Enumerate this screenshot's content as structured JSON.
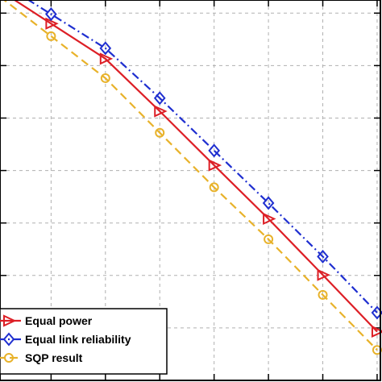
{
  "chart_data": {
    "type": "line",
    "title": "",
    "xlabel": "",
    "ylabel": "",
    "grid": true,
    "legend_location": "bottom-left",
    "x": [
      1,
      2,
      3,
      4,
      5,
      6,
      7
    ],
    "xlim": [
      0.06,
      7.06
    ],
    "ylim": [
      0,
      7.25
    ],
    "series": [
      {
        "name": "Equal power",
        "color": "#dd1f26",
        "line_style": "solid",
        "marker": "triangle-right",
        "values": [
          6.8,
          6.13,
          5.13,
          4.1,
          3.08,
          2.01,
          0.93
        ]
      },
      {
        "name": "Equal link reliability",
        "color": "#1f2fd0",
        "line_style": "dashdot",
        "marker": "diamond",
        "values": [
          6.98,
          6.33,
          5.38,
          4.38,
          3.38,
          2.36,
          1.29
        ]
      },
      {
        "name": "SQP result",
        "color": "#e8b22a",
        "line_style": "dashed",
        "marker": "circle",
        "values": [
          6.56,
          5.76,
          4.72,
          3.68,
          2.69,
          1.63,
          0.58
        ]
      }
    ]
  }
}
